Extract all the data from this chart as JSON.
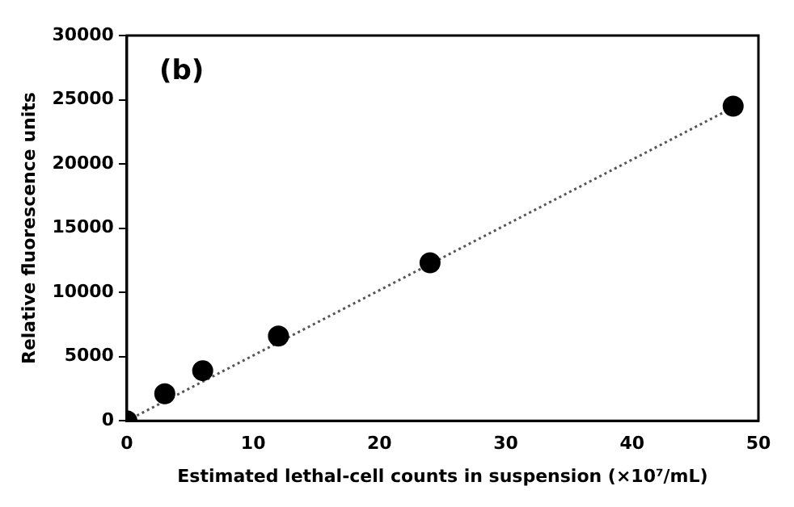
{
  "chart_data": {
    "type": "scatter",
    "xlabel": "Estimated lethal-cell counts in suspension (×10⁷/mL)",
    "ylabel": "Relative fluorescence units",
    "annotations": [
      "(b)"
    ],
    "x": [
      0,
      3,
      6,
      12,
      24,
      48
    ],
    "series": [
      {
        "color": "#000000",
        "values": [
          0,
          2100,
          3900,
          6600,
          12300,
          24500
        ],
        "marker": "circle"
      },
      {
        "type": "line",
        "x": [
          0,
          48
        ],
        "color": "#555555",
        "values": [
          0,
          24400
        ],
        "line_style": "dotted",
        "marker": "none"
      }
    ],
    "xlim": [
      0,
      50
    ],
    "xticks": [
      0,
      10,
      20,
      30,
      40,
      50
    ],
    "ylim": [
      0,
      30000
    ],
    "yticks": [
      0,
      5000,
      10000,
      15000,
      20000,
      25000,
      30000
    ],
    "grid": false,
    "legend": false
  }
}
